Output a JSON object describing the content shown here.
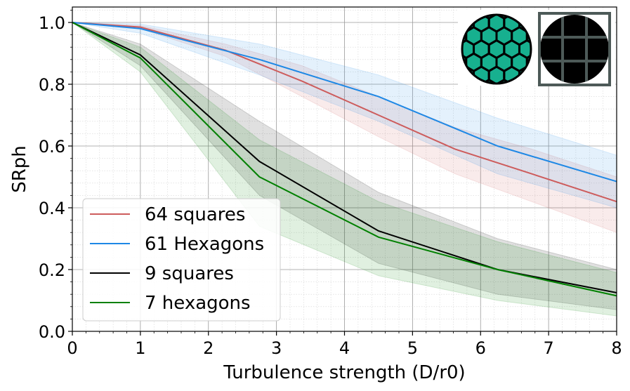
{
  "chart_data": {
    "type": "line",
    "title": "",
    "xlabel": "Turbulence strength (D/r0)",
    "ylabel": "SRph",
    "xlim": [
      0,
      8
    ],
    "ylim": [
      0,
      1.05
    ],
    "x_ticks": [
      "0",
      "1",
      "2",
      "3",
      "4",
      "5",
      "6",
      "7",
      "8"
    ],
    "y_ticks": [
      "0.0",
      "0.2",
      "0.4",
      "0.6",
      "0.8",
      "1.0"
    ],
    "grid": true,
    "legend_position": "lower-left",
    "series": [
      {
        "name": "64 squares",
        "color": "#cd5c5c",
        "x": [
          0,
          1,
          2.25,
          3.375,
          4.5,
          5.625,
          6.75,
          8
        ],
        "y": [
          1.0,
          0.985,
          0.91,
          0.81,
          0.7,
          0.59,
          0.51,
          0.42
        ],
        "lower": [
          1.0,
          0.98,
          0.89,
          0.76,
          0.63,
          0.51,
          0.42,
          0.32
        ],
        "upper": [
          1.0,
          0.99,
          0.93,
          0.86,
          0.76,
          0.66,
          0.59,
          0.5
        ]
      },
      {
        "name": "61 Hexagons",
        "color": "#1e88e5",
        "x": [
          0,
          1,
          2.75,
          4.5,
          6.25,
          8
        ],
        "y": [
          1.0,
          0.98,
          0.88,
          0.76,
          0.6,
          0.485
        ],
        "lower": [
          1.0,
          0.965,
          0.83,
          0.68,
          0.51,
          0.4
        ],
        "upper": [
          1.0,
          0.995,
          0.93,
          0.83,
          0.69,
          0.57
        ]
      },
      {
        "name": "9 squares",
        "color": "#000000",
        "x": [
          0,
          1,
          2.75,
          4.5,
          6.25,
          8
        ],
        "y": [
          1.0,
          0.895,
          0.55,
          0.325,
          0.2,
          0.125
        ],
        "lower": [
          1.0,
          0.86,
          0.44,
          0.22,
          0.12,
          0.07
        ],
        "upper": [
          1.0,
          0.93,
          0.68,
          0.45,
          0.3,
          0.2
        ]
      },
      {
        "name": "7 hexagons",
        "color": "#008000",
        "x": [
          0,
          1,
          2.75,
          4.5,
          6.25,
          8
        ],
        "y": [
          1.0,
          0.885,
          0.5,
          0.305,
          0.2,
          0.115
        ],
        "lower": [
          1.0,
          0.84,
          0.34,
          0.18,
          0.1,
          0.05
        ],
        "upper": [
          1.0,
          0.92,
          0.62,
          0.42,
          0.29,
          0.19
        ]
      }
    ],
    "inset_icons": [
      "hexagon-pupil-icon",
      "square-grid-pupil-icon"
    ]
  }
}
